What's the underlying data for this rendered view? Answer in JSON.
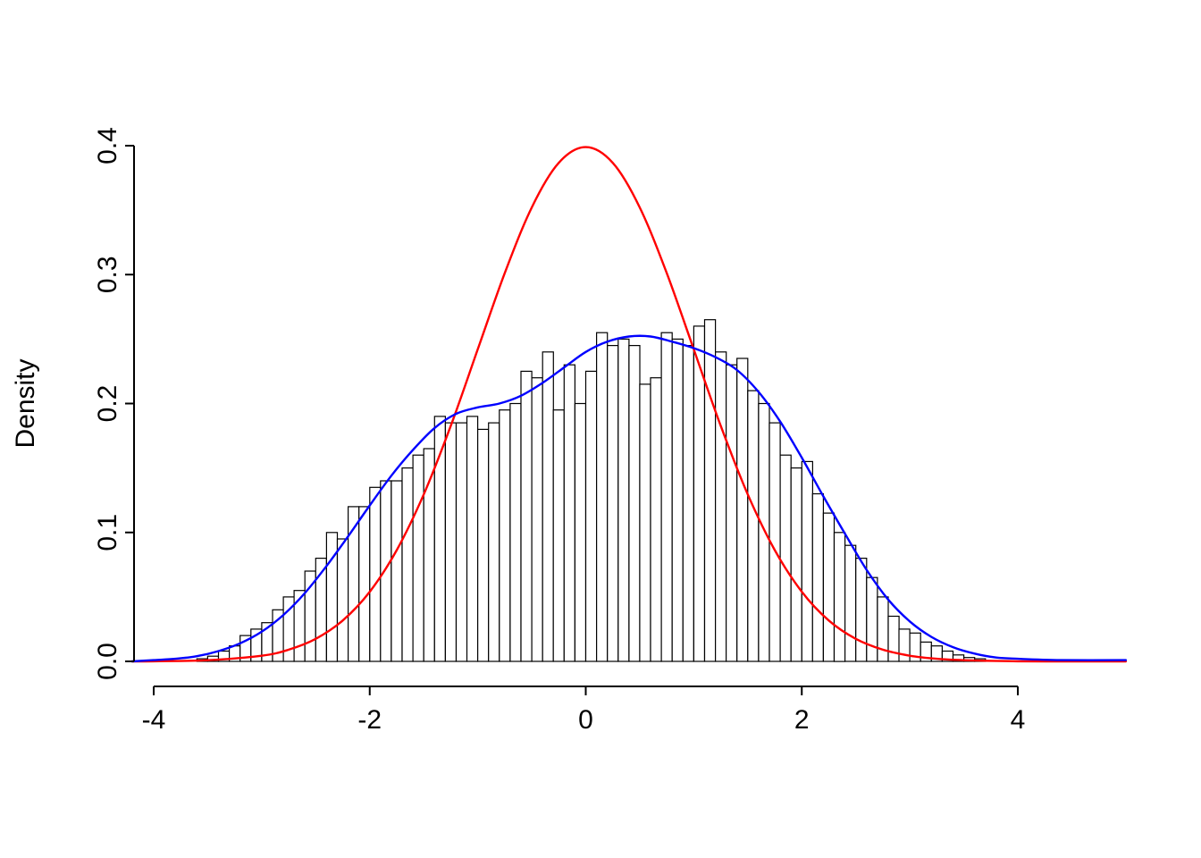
{
  "chart_data": {
    "type": "bar",
    "subtype": "histogram-with-density-curves",
    "title": "",
    "xlabel": "",
    "ylabel": "Density",
    "xlim": [
      -4.2,
      5.0
    ],
    "ylim": [
      0,
      0.4
    ],
    "grid": false,
    "legend": "none",
    "x_ticks": [
      {
        "v": -4,
        "label": "-4"
      },
      {
        "v": -2,
        "label": "-2"
      },
      {
        "v": 0,
        "label": "0"
      },
      {
        "v": 2,
        "label": "2"
      },
      {
        "v": 4,
        "label": "4"
      }
    ],
    "y_ticks": [
      {
        "v": 0.0,
        "label": "0.0"
      },
      {
        "v": 0.1,
        "label": "0.1"
      },
      {
        "v": 0.2,
        "label": "0.2"
      },
      {
        "v": 0.3,
        "label": "0.3"
      },
      {
        "v": 0.4,
        "label": "0.4"
      }
    ],
    "histogram": {
      "bin_start": -3.6,
      "bin_width": 0.1,
      "bar_fill": "#ffffff",
      "bar_stroke": "#000000",
      "densities": [
        0.002,
        0.004,
        0.008,
        0.012,
        0.02,
        0.025,
        0.03,
        0.04,
        0.05,
        0.055,
        0.07,
        0.08,
        0.1,
        0.095,
        0.12,
        0.12,
        0.135,
        0.14,
        0.14,
        0.15,
        0.16,
        0.165,
        0.19,
        0.185,
        0.185,
        0.19,
        0.18,
        0.185,
        0.195,
        0.2,
        0.225,
        0.22,
        0.24,
        0.195,
        0.23,
        0.2,
        0.225,
        0.255,
        0.245,
        0.25,
        0.245,
        0.215,
        0.22,
        0.255,
        0.25,
        0.245,
        0.26,
        0.265,
        0.24,
        0.23,
        0.235,
        0.21,
        0.2,
        0.185,
        0.16,
        0.15,
        0.155,
        0.13,
        0.115,
        0.1,
        0.09,
        0.08,
        0.065,
        0.05,
        0.035,
        0.025,
        0.022,
        0.015,
        0.012,
        0.008,
        0.005,
        0.003,
        0.002
      ]
    },
    "curves": [
      {
        "name": "normal-density",
        "color": "#ff0000",
        "width": 2.4,
        "points": [
          [
            -4.2,
            0.0
          ],
          [
            -4.0,
            0.0001
          ],
          [
            -3.5,
            0.0009
          ],
          [
            -3.0,
            0.0044
          ],
          [
            -2.75,
            0.0091
          ],
          [
            -2.5,
            0.0175
          ],
          [
            -2.25,
            0.0317
          ],
          [
            -2.0,
            0.054
          ],
          [
            -1.75,
            0.0863
          ],
          [
            -1.5,
            0.1295
          ],
          [
            -1.25,
            0.1826
          ],
          [
            -1.0,
            0.242
          ],
          [
            -0.75,
            0.3011
          ],
          [
            -0.5,
            0.3521
          ],
          [
            -0.25,
            0.3867
          ],
          [
            0.0,
            0.3989
          ],
          [
            0.25,
            0.3867
          ],
          [
            0.5,
            0.3521
          ],
          [
            0.75,
            0.3011
          ],
          [
            1.0,
            0.242
          ],
          [
            1.25,
            0.1826
          ],
          [
            1.5,
            0.1295
          ],
          [
            1.75,
            0.0863
          ],
          [
            2.0,
            0.054
          ],
          [
            2.25,
            0.0317
          ],
          [
            2.5,
            0.0175
          ],
          [
            2.75,
            0.0091
          ],
          [
            3.0,
            0.0044
          ],
          [
            3.25,
            0.002
          ],
          [
            3.5,
            0.0009
          ],
          [
            4.0,
            0.0001
          ],
          [
            4.5,
            0.0
          ],
          [
            5.0,
            0.0
          ]
        ]
      },
      {
        "name": "kernel-density-estimate",
        "color": "#0000ff",
        "width": 2.4,
        "points": [
          [
            -4.2,
            0.0
          ],
          [
            -4.0,
            0.001
          ],
          [
            -3.8,
            0.002
          ],
          [
            -3.6,
            0.004
          ],
          [
            -3.4,
            0.008
          ],
          [
            -3.2,
            0.014
          ],
          [
            -3.0,
            0.023
          ],
          [
            -2.8,
            0.036
          ],
          [
            -2.6,
            0.053
          ],
          [
            -2.4,
            0.074
          ],
          [
            -2.2,
            0.097
          ],
          [
            -2.0,
            0.121
          ],
          [
            -1.8,
            0.144
          ],
          [
            -1.6,
            0.164
          ],
          [
            -1.4,
            0.181
          ],
          [
            -1.2,
            0.192
          ],
          [
            -1.0,
            0.197
          ],
          [
            -0.8,
            0.2
          ],
          [
            -0.6,
            0.206
          ],
          [
            -0.4,
            0.216
          ],
          [
            -0.2,
            0.228
          ],
          [
            0.0,
            0.24
          ],
          [
            0.2,
            0.248
          ],
          [
            0.4,
            0.252
          ],
          [
            0.6,
            0.252
          ],
          [
            0.8,
            0.248
          ],
          [
            1.0,
            0.243
          ],
          [
            1.2,
            0.236
          ],
          [
            1.4,
            0.226
          ],
          [
            1.6,
            0.209
          ],
          [
            1.8,
            0.186
          ],
          [
            2.0,
            0.158
          ],
          [
            2.2,
            0.128
          ],
          [
            2.4,
            0.099
          ],
          [
            2.6,
            0.071
          ],
          [
            2.8,
            0.048
          ],
          [
            3.0,
            0.031
          ],
          [
            3.2,
            0.019
          ],
          [
            3.4,
            0.011
          ],
          [
            3.6,
            0.006
          ],
          [
            3.8,
            0.003
          ],
          [
            4.0,
            0.002
          ],
          [
            4.4,
            0.001
          ],
          [
            5.0,
            0.001
          ]
        ]
      }
    ],
    "axis_color": "#000000"
  }
}
